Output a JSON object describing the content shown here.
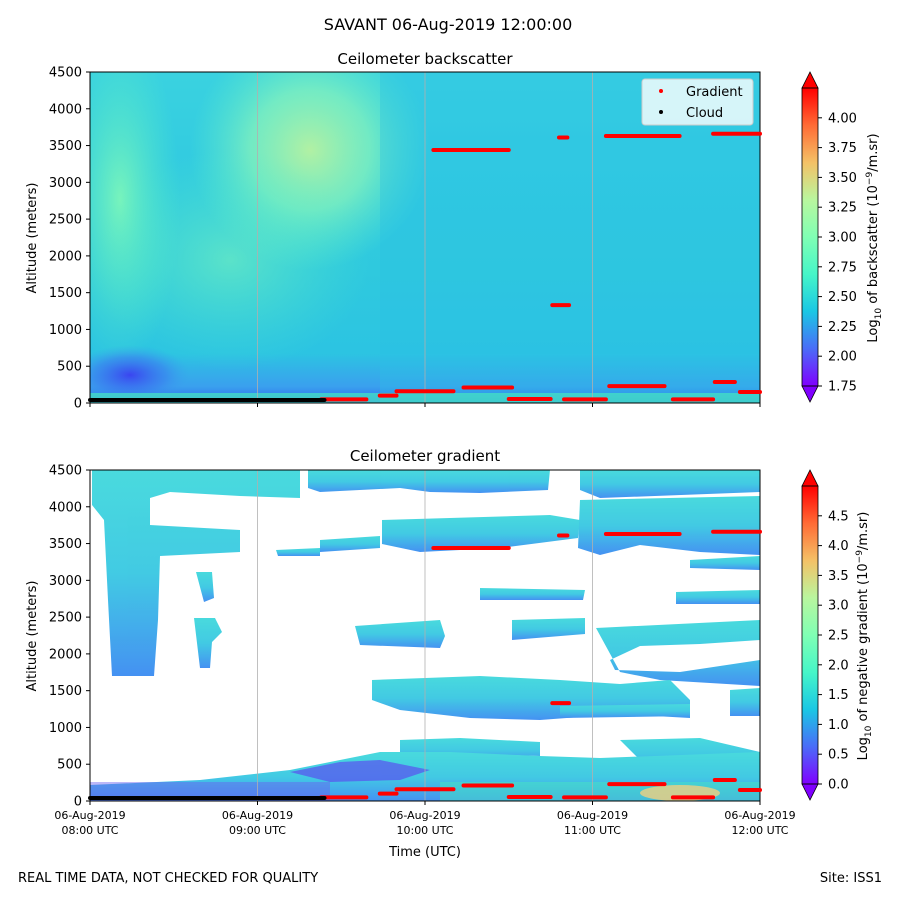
{
  "suptitle": "SAVANT 06-Aug-2019 12:00:00",
  "footer": {
    "left": "REAL TIME DATA, NOT CHECKED FOR QUALITY",
    "right": "Site: ISS1"
  },
  "colors": {
    "gradient_marker": "#ff0000",
    "cloud_marker": "#000000",
    "grid": "#b0b0b0"
  },
  "chart_data": [
    {
      "type": "heatmap",
      "title": "Ceilometer backscatter",
      "ylabel": "Altitude (meters)",
      "xlabel": "",
      "xlim": [
        "06-Aug-2019 08:00 UTC",
        "06-Aug-2019 12:00 UTC"
      ],
      "ylim": [
        0,
        4500
      ],
      "yticks": [
        "0",
        "500",
        "1000",
        "1500",
        "2000",
        "2500",
        "3000",
        "3500",
        "4000",
        "4500"
      ],
      "xticks": [],
      "grid": "vertical",
      "legend": {
        "placement": "top-right",
        "entries": [
          "Gradient",
          "Cloud"
        ]
      },
      "colorbar": {
        "label": "Log10 of backscatter (10^-9/m.sr)",
        "label_base": "Log",
        "label_sub": "10",
        "label_mid": " of backscatter (10",
        "label_sup": "−9",
        "label_end": "/m.sr)",
        "ticks": [
          "1.75",
          "2.00",
          "2.25",
          "2.50",
          "2.75",
          "3.00",
          "3.25",
          "3.50",
          "3.75",
          "4.00"
        ],
        "range": [
          1.75,
          4.25
        ]
      },
      "series": [
        {
          "name": "Gradient",
          "color": "#ff0000",
          "segments": [
            {
              "t": [
                1.38,
                1.65
              ],
              "z": 50
            },
            {
              "t": [
                1.73,
                1.83
              ],
              "z": 100
            },
            {
              "t": [
                1.83,
                2.17
              ],
              "z": 160
            },
            {
              "t": [
                2.23,
                2.52
              ],
              "z": 210
            },
            {
              "t": [
                2.5,
                2.75
              ],
              "z": 55
            },
            {
              "t": [
                2.83,
                3.08
              ],
              "z": 50
            },
            {
              "t": [
                3.1,
                3.43
              ],
              "z": 230
            },
            {
              "t": [
                3.48,
                3.72
              ],
              "z": 50
            },
            {
              "t": [
                3.73,
                3.85
              ],
              "z": 285
            },
            {
              "t": [
                3.88,
                4.0
              ],
              "z": 150
            },
            {
              "t": [
                2.05,
                2.5
              ],
              "z": 3440
            },
            {
              "t": [
                2.8,
                2.85
              ],
              "z": 3610
            },
            {
              "t": [
                3.08,
                3.52
              ],
              "z": 3630
            },
            {
              "t": [
                3.72,
                4.0
              ],
              "z": 3660
            },
            {
              "t": [
                2.76,
                2.86
              ],
              "z": 1330
            }
          ]
        },
        {
          "name": "Cloud",
          "color": "#000000",
          "segments": [
            {
              "t": [
                0.0,
                1.4
              ],
              "z": 40
            }
          ]
        }
      ]
    },
    {
      "type": "heatmap",
      "title": "Ceilometer gradient",
      "ylabel": "Altitude (meters)",
      "xlabel": "Time (UTC)",
      "xlim": [
        "06-Aug-2019 08:00 UTC",
        "06-Aug-2019 12:00 UTC"
      ],
      "ylim": [
        0,
        4500
      ],
      "yticks": [
        "0",
        "500",
        "1000",
        "1500",
        "2000",
        "2500",
        "3000",
        "3500",
        "4000",
        "4500"
      ],
      "xticks": [
        {
          "date": "06-Aug-2019",
          "time": "08:00 UTC"
        },
        {
          "date": "06-Aug-2019",
          "time": "09:00 UTC"
        },
        {
          "date": "06-Aug-2019",
          "time": "10:00 UTC"
        },
        {
          "date": "06-Aug-2019",
          "time": "11:00 UTC"
        },
        {
          "date": "06-Aug-2019",
          "time": "12:00 UTC"
        }
      ],
      "grid": "vertical",
      "colorbar": {
        "label": "Log10 of negative gradient (10^-9/m.sr)",
        "label_base": "Log",
        "label_sub": "10",
        "label_mid": " of negative gradient (10",
        "label_sup": "−9",
        "label_end": "/m.sr)",
        "ticks": [
          "0.0",
          "0.5",
          "1.0",
          "1.5",
          "2.0",
          "2.5",
          "3.0",
          "3.5",
          "4.0",
          "4.5"
        ],
        "range": [
          0,
          5.0
        ]
      }
    }
  ]
}
